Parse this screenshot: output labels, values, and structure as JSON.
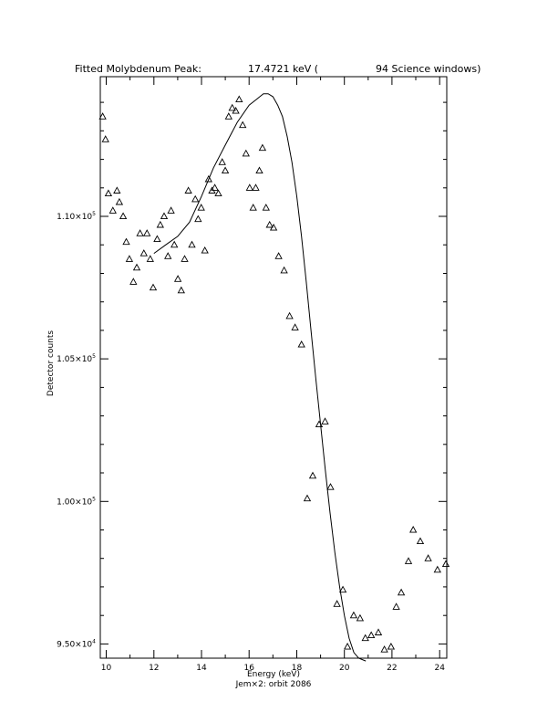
{
  "chart_data": {
    "type": "scatter",
    "title": {
      "prefix": "Fitted Molybdenum Peak:",
      "energy": "17.4721 keV (",
      "windows": "94 Science windows)"
    },
    "subtitle": "Jem×2: orbit 2086",
    "xlabel": "Energy (keV)",
    "ylabel": "Detector counts",
    "xlim": [
      9.75,
      24.3
    ],
    "ylim": [
      94500,
      114900
    ],
    "grid": false,
    "x_ticks": [
      10,
      12,
      14,
      16,
      18,
      20,
      22,
      24
    ],
    "x_tick_labels": [
      "10",
      "12",
      "14",
      "16",
      "18",
      "20",
      "22",
      "24"
    ],
    "y_ticks": [
      95000,
      100000,
      105000,
      110000
    ],
    "y_tick_labels": [
      {
        "mantissa": "9.50×10",
        "exp": "4"
      },
      {
        "mantissa": "1.00×10",
        "exp": "5"
      },
      {
        "mantissa": "1.05×10",
        "exp": "5"
      },
      {
        "mantissa": "1.10×10",
        "exp": "5"
      }
    ],
    "series": [
      {
        "marker": "open-triangle",
        "x": [
          9.85,
          9.97,
          10.09,
          10.28,
          10.45,
          10.55,
          10.71,
          10.84,
          10.97,
          11.14,
          11.28,
          11.42,
          11.58,
          11.71,
          11.85,
          11.97,
          12.14,
          12.27,
          12.43,
          12.59,
          12.72,
          12.86,
          13.01,
          13.15,
          13.29,
          13.45,
          13.6,
          13.74,
          13.86,
          13.99,
          14.14,
          14.3,
          14.44,
          14.56,
          14.71,
          14.87,
          15.0,
          15.14,
          15.29,
          15.44,
          15.58,
          15.73,
          15.87,
          16.02,
          16.17,
          16.28,
          16.43,
          16.56,
          16.71,
          16.86,
          17.03,
          17.24,
          17.47,
          17.7,
          17.93,
          18.2,
          18.44,
          18.67,
          18.94,
          19.19,
          19.42,
          19.69,
          19.94,
          20.13,
          20.39,
          20.66,
          20.88,
          21.13,
          21.43,
          21.68,
          21.96,
          22.18,
          22.39,
          22.69,
          22.89,
          23.19,
          23.52,
          23.91,
          24.26
        ],
        "y": [
          113500,
          112700,
          110800,
          110200,
          110900,
          110500,
          110000,
          109100,
          108500,
          107700,
          108200,
          109400,
          108700,
          109400,
          108500,
          107500,
          109200,
          109700,
          110000,
          108600,
          110200,
          109000,
          107800,
          107400,
          108500,
          110900,
          109000,
          110600,
          109900,
          110300,
          108800,
          111300,
          110900,
          111000,
          110800,
          111900,
          111600,
          113500,
          113800,
          113700,
          114100,
          113200,
          112200,
          111000,
          110300,
          111000,
          111600,
          112400,
          110300,
          109700,
          109600,
          108600,
          108100,
          106500,
          106100,
          105500,
          100100,
          100900,
          102700,
          102800,
          100500,
          96400,
          96900,
          94900,
          96000,
          95900,
          95200,
          95300,
          95400,
          94800,
          94900,
          96300,
          96800,
          97900,
          99000,
          98600,
          98000,
          97600,
          97800
        ]
      },
      {
        "marker": "line",
        "x": [
          12.0,
          12.5,
          13.0,
          13.5,
          14.0,
          14.5,
          15.0,
          15.5,
          16.0,
          16.3,
          16.6,
          16.8,
          17.0,
          17.2,
          17.4,
          17.6,
          17.8,
          18.0,
          18.2,
          18.4,
          18.6,
          18.8,
          19.0,
          19.2,
          19.4,
          19.6,
          19.8,
          20.0,
          20.2,
          20.4,
          20.6,
          20.9
        ],
        "y": [
          108700,
          109000,
          109300,
          109800,
          110700,
          111700,
          112500,
          113300,
          113900,
          114100,
          114300,
          114300,
          114200,
          113900,
          113500,
          112800,
          111900,
          110700,
          109300,
          107700,
          106000,
          104300,
          102700,
          101100,
          99600,
          98200,
          97000,
          96000,
          95200,
          94700,
          94500,
          94400
        ]
      }
    ]
  }
}
